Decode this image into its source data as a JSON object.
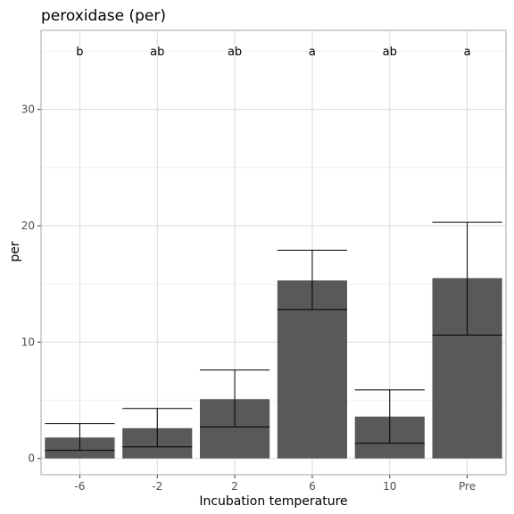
{
  "chart_data": {
    "type": "bar",
    "title": "peroxidase (per)",
    "xlabel": "Incubation temperature",
    "ylabel": "per",
    "categories": [
      "-6",
      "-2",
      "2",
      "6",
      "10",
      "Pre"
    ],
    "values": [
      1.8,
      2.6,
      5.1,
      15.3,
      3.6,
      15.5
    ],
    "error_low": [
      0.7,
      1.0,
      2.7,
      12.8,
      1.3,
      10.6
    ],
    "error_high": [
      3.0,
      4.3,
      7.6,
      17.9,
      5.9,
      20.3
    ],
    "significance_letters": [
      "b",
      "ab",
      "ab",
      "a",
      "ab",
      "a"
    ],
    "letter_y": 35,
    "ylim": [
      -1.4,
      36.8
    ],
    "yticks": [
      0,
      10,
      20,
      30
    ],
    "grid": true,
    "colors": {
      "bar": "#595959",
      "error_bar": "#000000",
      "grid_major": "#d9d9d9",
      "grid_minor": "#ebebeb",
      "panel_border": "#a6a6a6"
    }
  }
}
